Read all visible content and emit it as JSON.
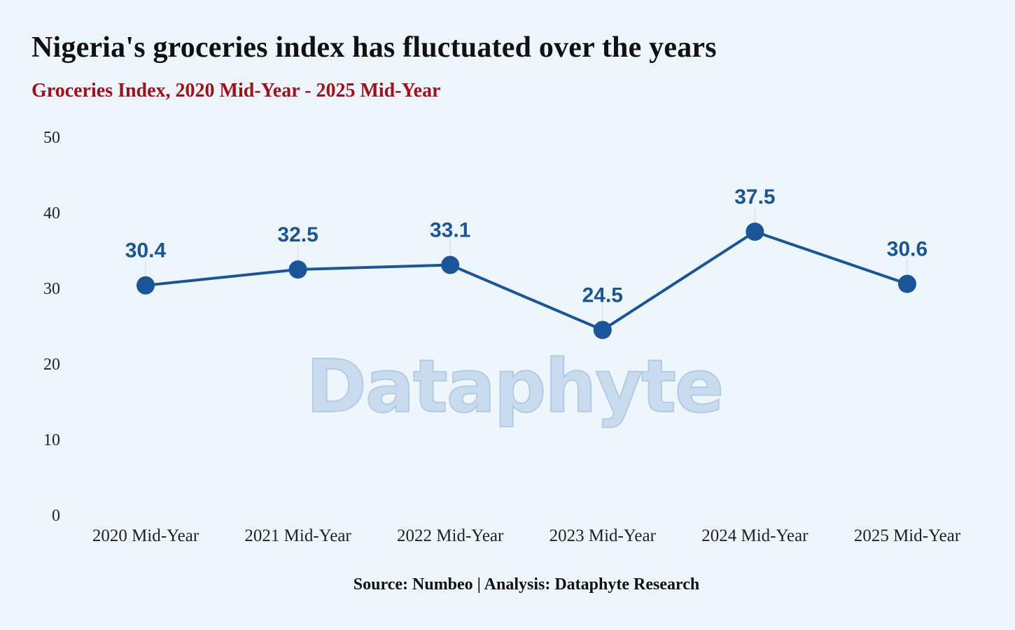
{
  "header": {
    "title": "Nigeria's groceries index has fluctuated over the years",
    "subtitle": "Groceries Index, 2020 Mid-Year - 2025 Mid-Year"
  },
  "footer": {
    "source": "Source: Numbeo | Analysis: Dataphyte Research"
  },
  "watermark": {
    "text": "Dataphyte"
  },
  "colors": {
    "line": "#1a5599",
    "label": "#1a5599",
    "title": "#111111",
    "subtitle": "#a50f15",
    "background": "#eef6fd"
  },
  "chart_data": {
    "type": "line",
    "title": "Nigeria's groceries index has fluctuated over the years",
    "subtitle": "Groceries Index, 2020 Mid-Year - 2025 Mid-Year",
    "categories": [
      "2020 Mid-Year",
      "2021 Mid-Year",
      "2022 Mid-Year",
      "2023 Mid-Year",
      "2024 Mid-Year",
      "2025 Mid-Year"
    ],
    "series": [
      {
        "name": "Groceries Index",
        "values": [
          30.4,
          32.5,
          33.1,
          24.5,
          37.5,
          30.6
        ]
      }
    ],
    "xlabel": "",
    "ylabel": "",
    "ylim": [
      0,
      50
    ],
    "yticks": [
      0,
      10,
      20,
      30,
      40,
      50
    ],
    "grid": false,
    "legend": "none"
  }
}
